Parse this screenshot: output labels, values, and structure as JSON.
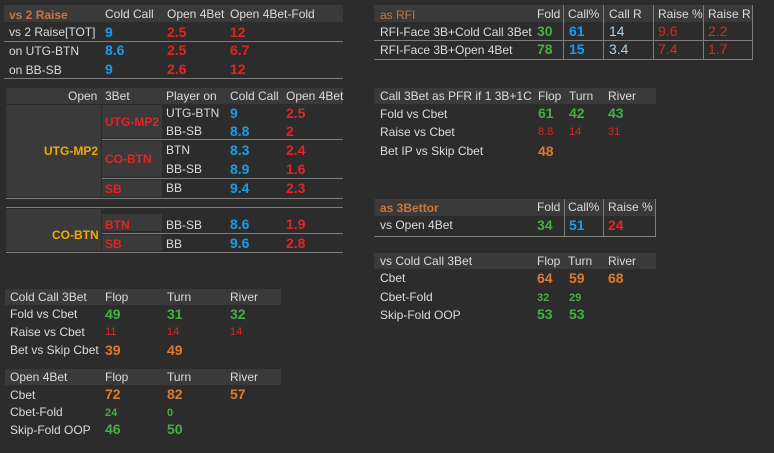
{
  "vs2raise": {
    "title": "vs 2 Raise",
    "h_cold_call": "Cold Call",
    "h_open4bet": "Open 4Bet",
    "h_open4bet_fold": "Open 4Bet-Fold",
    "rows": [
      {
        "label": "vs 2 Raise[TOT]",
        "cc": "9",
        "o4": "2.5",
        "o4f": "12"
      },
      {
        "label": "on UTG-BTN",
        "cc": "8.6",
        "o4": "2.5",
        "o4f": "6.7"
      },
      {
        "label": "on BB-SB",
        "cc": "9",
        "o4": "2.6",
        "o4f": "12"
      }
    ]
  },
  "matrix": {
    "h_open": "Open",
    "h_3bet": "3Bet",
    "h_player_on": "Player on",
    "h_cold_call": "Cold Call",
    "h_open4bet": "Open 4Bet",
    "group1": {
      "opener": "UTG-MP2",
      "sub": [
        {
          "threebet": "UTG-MP2",
          "rows": [
            {
              "player": "UTG-BTN",
              "cc": "9",
              "o4": "2.5"
            },
            {
              "player": "BB-SB",
              "cc": "8.8",
              "o4": "2"
            }
          ]
        },
        {
          "threebet": "CO-BTN",
          "rows": [
            {
              "player": "BTN",
              "cc": "8.3",
              "o4": "2.4"
            },
            {
              "player": "BB-SB",
              "cc": "8.9",
              "o4": "1.6"
            }
          ]
        },
        {
          "threebet": "SB",
          "rows": [
            {
              "player": "BB",
              "cc": "9.4",
              "o4": "2.3"
            }
          ]
        }
      ]
    },
    "group2": {
      "opener": "CO-BTN",
      "sub": [
        {
          "threebet": "BTN",
          "rows": [
            {
              "player": "BB-SB",
              "cc": "8.6",
              "o4": "1.9"
            }
          ]
        },
        {
          "threebet": "SB",
          "rows": [
            {
              "player": "BB",
              "cc": "9.6",
              "o4": "2.8"
            }
          ]
        }
      ]
    }
  },
  "cc3bet": {
    "title": "Cold Call 3Bet",
    "h_flop": "Flop",
    "h_turn": "Turn",
    "h_river": "River",
    "rows": [
      {
        "label": "Fold vs Cbet",
        "flop": "49",
        "turn": "31",
        "river": "32"
      },
      {
        "label": "Raise vs Cbet",
        "flop": "11",
        "turn": "14",
        "river": "14"
      },
      {
        "label": "Bet vs Skip Cbet",
        "flop": "39",
        "turn": "49",
        "river": ""
      }
    ]
  },
  "open4bet": {
    "title": "Open 4Bet",
    "h_flop": "Flop",
    "h_turn": "Turn",
    "h_river": "River",
    "rows": [
      {
        "label": "Cbet",
        "flop": "72",
        "turn": "82",
        "river": "57"
      },
      {
        "label": "Cbet-Fold",
        "flop": "24",
        "turn": "0",
        "river": ""
      },
      {
        "label": "Skip-Fold OOP",
        "flop": "46",
        "turn": "50",
        "river": ""
      }
    ]
  },
  "rfi": {
    "title": "as  RFI",
    "h_fold": "Fold",
    "h_call_pct": "Call%",
    "h_call_r": "Call R",
    "h_raise_pct": "Raise %",
    "h_raise_r": "Raise R",
    "rows": [
      {
        "label": "RFI-Face 3B+Cold Call 3Bet",
        "fold": "30",
        "call": "61",
        "callr": "14",
        "raise": "9.6",
        "raiser": "2.2"
      },
      {
        "label": "RFI-Face 3B+Open 4Bet",
        "fold": "78",
        "call": "15",
        "callr": "3.4",
        "raise": "7.4",
        "raiser": "1.7"
      }
    ]
  },
  "pfr": {
    "title": "Call 3Bet as PFR if  1 3B+1C",
    "h_flop": "Flop",
    "h_turn": "Turn",
    "h_river": "River",
    "rows": [
      {
        "label": "Fold vs Cbet",
        "flop": "61",
        "turn": "42",
        "river": "43"
      },
      {
        "label": "Raise vs Cbet",
        "flop": "8.8",
        "turn": "14",
        "river": "31"
      },
      {
        "label": "Bet IP vs Skip Cbet",
        "flop": "48",
        "turn": "",
        "river": ""
      }
    ]
  },
  "bettor": {
    "title": "as  3Bettor",
    "h_fold": "Fold",
    "h_call_pct": "Call%",
    "h_raise_pct": "Raise %",
    "row": {
      "label": "vs Open 4Bet",
      "fold": "34",
      "call": "51",
      "raise": "24"
    }
  },
  "vscc": {
    "title": "vs Cold Call 3Bet",
    "h_flop": "Flop",
    "h_turn": "Turn",
    "h_river": "River",
    "rows": [
      {
        "label": "Cbet",
        "flop": "64",
        "turn": "59",
        "river": "68"
      },
      {
        "label": "Cbet-Fold",
        "flop": "32",
        "turn": "29",
        "river": ""
      },
      {
        "label": "Skip-Fold OOP",
        "flop": "53",
        "turn": "53",
        "river": ""
      }
    ]
  },
  "colors": {
    "background": "#2c2c2c",
    "header_bg": "#3a3a3a",
    "blue": "#1e9be8",
    "red": "#e02525",
    "green": "#43b043",
    "orange": "#e07a2a",
    "gold": "#f1a800"
  }
}
